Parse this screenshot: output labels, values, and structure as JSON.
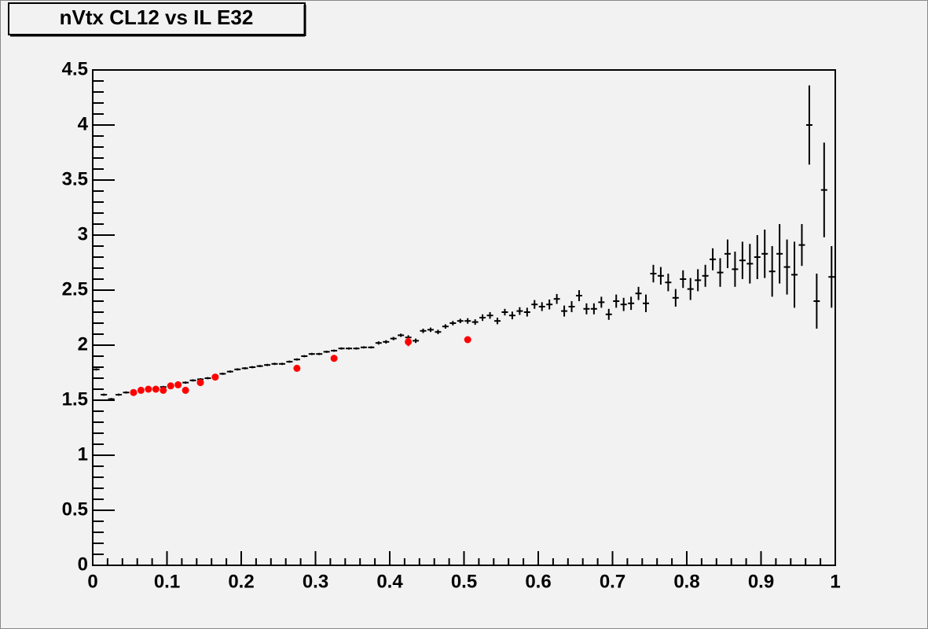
{
  "chart_data": {
    "type": "scatter",
    "title": "nVtx CL12 vs IL E32",
    "xlim": [
      0,
      1
    ],
    "xticks": [
      0,
      0.1,
      0.2,
      0.3,
      0.4,
      0.5,
      0.6,
      0.7,
      0.8,
      0.9,
      1
    ],
    "ylim": [
      0,
      4.5
    ],
    "yticks": [
      0,
      0.5,
      1,
      1.5,
      2,
      2.5,
      3,
      3.5,
      4,
      4.5
    ],
    "series": [
      {
        "color": "#000000",
        "x": [
          0.005,
          0.015,
          0.025,
          0.035,
          0.045,
          0.055,
          0.065,
          0.075,
          0.085,
          0.095,
          0.105,
          0.115,
          0.125,
          0.135,
          0.145,
          0.155,
          0.165,
          0.175,
          0.185,
          0.195,
          0.205,
          0.215,
          0.225,
          0.235,
          0.245,
          0.255,
          0.265,
          0.275,
          0.285,
          0.295,
          0.305,
          0.315,
          0.325,
          0.335,
          0.345,
          0.355,
          0.365,
          0.375,
          0.385,
          0.395,
          0.405,
          0.415,
          0.425,
          0.435,
          0.445,
          0.455,
          0.465,
          0.475,
          0.485,
          0.495,
          0.505,
          0.515,
          0.525,
          0.535,
          0.545,
          0.555,
          0.565,
          0.575,
          0.585,
          0.595,
          0.605,
          0.615,
          0.625,
          0.635,
          0.645,
          0.655,
          0.665,
          0.675,
          0.685,
          0.695,
          0.705,
          0.715,
          0.725,
          0.735,
          0.745,
          0.755,
          0.765,
          0.775,
          0.785,
          0.795,
          0.805,
          0.815,
          0.825,
          0.835,
          0.845,
          0.855,
          0.865,
          0.875,
          0.885,
          0.895,
          0.905,
          0.915,
          0.925,
          0.935,
          0.945,
          0.955,
          0.965,
          0.975,
          0.985,
          0.995
        ],
        "values": [
          1.78,
          1.55,
          1.51,
          1.55,
          1.57,
          1.58,
          1.59,
          1.6,
          1.61,
          1.62,
          1.63,
          1.65,
          1.66,
          1.68,
          1.69,
          1.7,
          1.72,
          1.74,
          1.76,
          1.78,
          1.79,
          1.8,
          1.81,
          1.82,
          1.83,
          1.83,
          1.85,
          1.87,
          1.9,
          1.92,
          1.92,
          1.94,
          1.95,
          1.97,
          1.97,
          1.97,
          1.98,
          1.98,
          2.02,
          2.03,
          2.06,
          2.09,
          2.07,
          2.04,
          2.13,
          2.14,
          2.12,
          2.17,
          2.2,
          2.22,
          2.22,
          2.21,
          2.25,
          2.27,
          2.22,
          2.3,
          2.27,
          2.31,
          2.3,
          2.37,
          2.35,
          2.37,
          2.42,
          2.31,
          2.35,
          2.45,
          2.33,
          2.33,
          2.39,
          2.28,
          2.4,
          2.37,
          2.38,
          2.47,
          2.38,
          2.65,
          2.63,
          2.57,
          2.43,
          2.6,
          2.51,
          2.59,
          2.63,
          2.78,
          2.66,
          2.83,
          2.69,
          2.77,
          2.74,
          2.8,
          2.83,
          2.67,
          2.83,
          2.71,
          2.64,
          2.91,
          4.0,
          2.4,
          3.41,
          2.62
        ],
        "errors": [
          0.01,
          0.01,
          0.01,
          0.01,
          0.01,
          0.01,
          0.01,
          0.01,
          0.01,
          0.01,
          0.01,
          0.01,
          0.01,
          0.01,
          0.01,
          0.01,
          0.01,
          0.01,
          0.01,
          0.01,
          0.01,
          0.01,
          0.01,
          0.01,
          0.01,
          0.01,
          0.01,
          0.01,
          0.01,
          0.01,
          0.01,
          0.01,
          0.01,
          0.01,
          0.01,
          0.01,
          0.01,
          0.01,
          0.015,
          0.015,
          0.015,
          0.015,
          0.02,
          0.02,
          0.02,
          0.02,
          0.02,
          0.02,
          0.02,
          0.02,
          0.025,
          0.025,
          0.03,
          0.03,
          0.03,
          0.03,
          0.035,
          0.035,
          0.04,
          0.04,
          0.04,
          0.045,
          0.045,
          0.05,
          0.05,
          0.05,
          0.05,
          0.05,
          0.05,
          0.05,
          0.06,
          0.06,
          0.06,
          0.06,
          0.08,
          0.08,
          0.08,
          0.08,
          0.08,
          0.08,
          0.1,
          0.1,
          0.1,
          0.1,
          0.13,
          0.13,
          0.16,
          0.17,
          0.18,
          0.2,
          0.22,
          0.23,
          0.27,
          0.25,
          0.3,
          0.19,
          0.36,
          0.25,
          0.43,
          0.28
        ]
      },
      {
        "color": "#ff0000",
        "x": [
          0.055,
          0.065,
          0.075,
          0.085,
          0.095,
          0.105,
          0.115,
          0.125,
          0.145,
          0.165,
          0.275,
          0.325,
          0.425,
          0.505
        ],
        "values": [
          1.57,
          1.59,
          1.6,
          1.6,
          1.59,
          1.63,
          1.64,
          1.59,
          1.66,
          1.71,
          1.79,
          1.88,
          2.03,
          2.05
        ],
        "errors": [
          0.01,
          0.01,
          0.01,
          0.01,
          0.01,
          0.01,
          0.01,
          0.01,
          0.01,
          0.01,
          0.01,
          0.01,
          0.04,
          0.01
        ]
      }
    ]
  }
}
